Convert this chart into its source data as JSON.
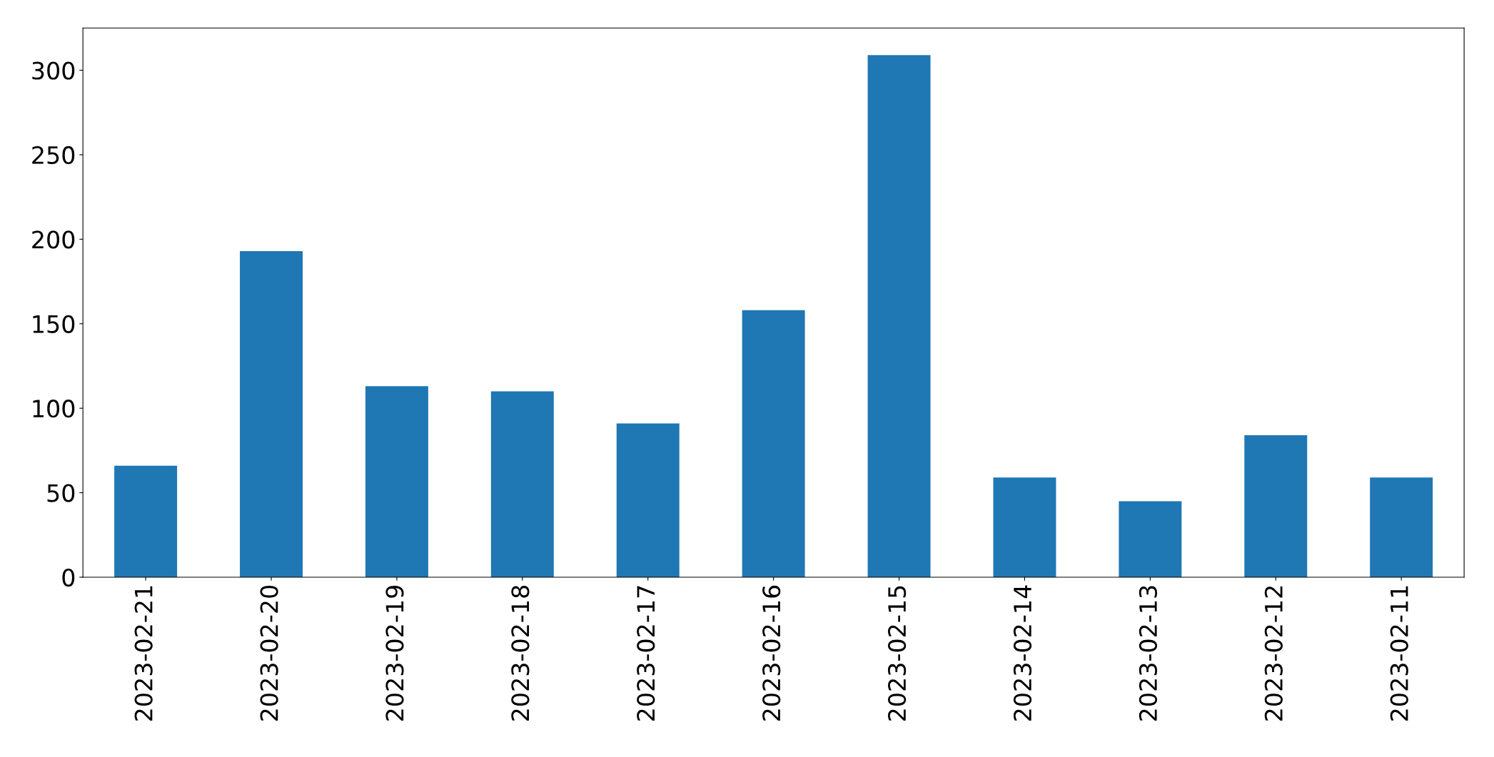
{
  "chart_data": {
    "type": "bar",
    "categories": [
      "2023-02-21",
      "2023-02-20",
      "2023-02-19",
      "2023-02-18",
      "2023-02-17",
      "2023-02-16",
      "2023-02-15",
      "2023-02-14",
      "2023-02-13",
      "2023-02-12",
      "2023-02-11"
    ],
    "values": [
      66,
      193,
      113,
      110,
      91,
      158,
      309,
      59,
      45,
      84,
      59
    ],
    "color": "#1f77b4",
    "ylim": [
      0,
      325
    ],
    "yticks": [
      0,
      50,
      100,
      150,
      200,
      250,
      300
    ],
    "grid": false,
    "legend": false
  }
}
